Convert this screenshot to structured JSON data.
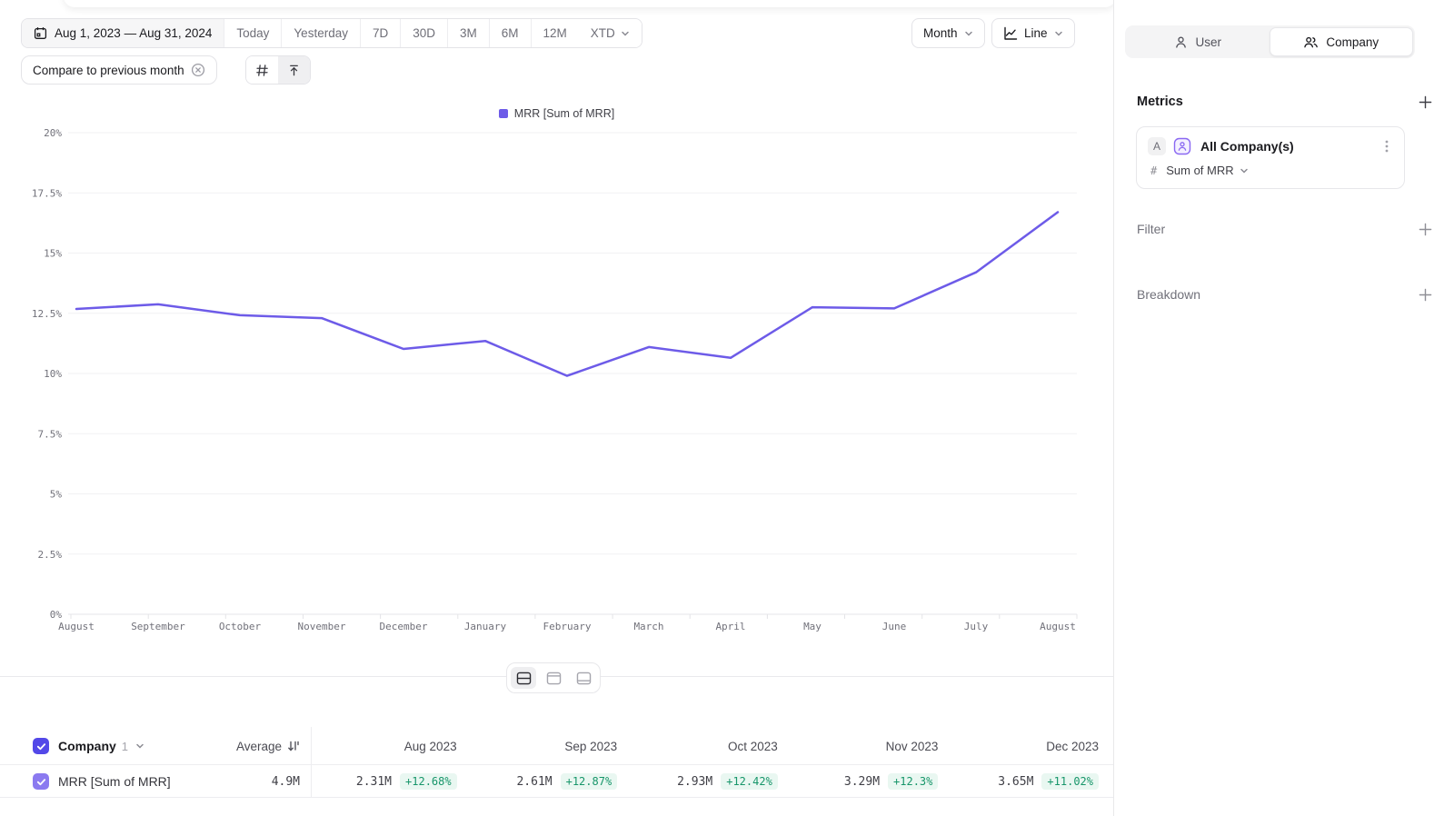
{
  "toolbar": {
    "date_range": "Aug 1, 2023 — Aug 31, 2024",
    "quick_ranges": [
      "Today",
      "Yesterday",
      "7D",
      "30D",
      "3M",
      "6M",
      "12M"
    ],
    "xtd_label": "XTD",
    "compare_label": "Compare to previous month",
    "granularity": "Month",
    "chart_type": "Line"
  },
  "sidebar": {
    "tabs": [
      {
        "label": "User",
        "active": false
      },
      {
        "label": "Company",
        "active": true
      }
    ],
    "metrics_title": "Metrics",
    "metric": {
      "badge": "A",
      "name": "All Company(s)",
      "aggregation": "Sum of MRR"
    },
    "sections": [
      {
        "label": "Filter"
      },
      {
        "label": "Breakdown"
      }
    ]
  },
  "chart_data": {
    "type": "line",
    "title": "",
    "legend_position": "top",
    "grid": true,
    "categories": [
      "August",
      "September",
      "October",
      "November",
      "December",
      "January",
      "February",
      "March",
      "April",
      "May",
      "June",
      "July",
      "August"
    ],
    "series": [
      {
        "name": "MRR [Sum of MRR]",
        "color": "#6D5BE8",
        "values": [
          12.68,
          12.87,
          12.42,
          12.3,
          11.02,
          11.35,
          9.9,
          11.1,
          10.65,
          12.75,
          12.7,
          14.2,
          16.7
        ]
      }
    ],
    "ylim": [
      0,
      20
    ],
    "ytick_step": 2.5,
    "ytick_labels": [
      "0%",
      "2.5%",
      "5%",
      "7.5%",
      "10%",
      "12.5%",
      "15%",
      "17.5%",
      "20%"
    ]
  },
  "table": {
    "entity_label": "Company",
    "entity_count": "1",
    "average_label": "Average",
    "columns": [
      "Aug 2023",
      "Sep 2023",
      "Oct 2023",
      "Nov 2023",
      "Dec 2023"
    ],
    "rows": [
      {
        "name": "MRR [Sum of MRR]",
        "average": "4.9M",
        "cells": [
          {
            "value": "2.31M",
            "change": "+12.68%"
          },
          {
            "value": "2.61M",
            "change": "+12.87%"
          },
          {
            "value": "2.93M",
            "change": "+12.42%"
          },
          {
            "value": "3.29M",
            "change": "+12.3%"
          },
          {
            "value": "3.65M",
            "change": "+11.02%"
          }
        ]
      }
    ]
  },
  "colors": {
    "accent_purple": "#6D5BE8",
    "checkbox_dark": "#5348E8",
    "checkbox_light": "#8B7AF0",
    "positive_text": "#17966A",
    "positive_bg": "#E9F7F1",
    "gridline": "#F1F1F3",
    "border": "#E3E3E7",
    "text_gray": "#6E6E77"
  }
}
